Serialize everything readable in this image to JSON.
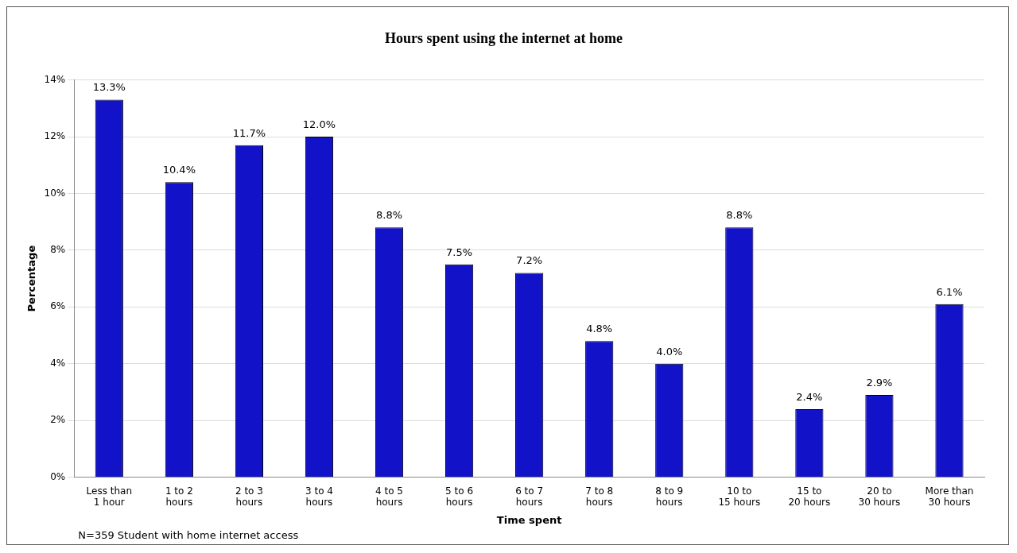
{
  "chart_data": {
    "type": "bar",
    "title": "Hours spent using the internet at home",
    "xlabel": "Time spent",
    "ylabel": "Percentage",
    "categories": [
      "Less than 1 hour",
      "1 to 2 hours",
      "2 to 3 hours",
      "3 to 4 hours",
      "4 to 5 hours",
      "5 to 6 hours",
      "6 to 7 hours",
      "7 to 8 hours",
      "8 to 9 hours",
      "10 to 15 hours",
      "15 to 20 hours",
      "20 to 30 hours",
      "More than 30 hours"
    ],
    "values": [
      13.3,
      10.4,
      11.7,
      12.0,
      8.8,
      7.5,
      7.2,
      4.8,
      4.0,
      8.8,
      2.4,
      2.9,
      6.1
    ],
    "value_labels": [
      "13.3%",
      "10.4%",
      "11.7%",
      "12.0%",
      "8.8%",
      "7.5%",
      "7.2%",
      "4.8%",
      "4.0%",
      "8.8%",
      "2.4%",
      "2.9%",
      "6.1%"
    ],
    "color": "#1212c8",
    "ylim": [
      0,
      14
    ],
    "yticks": [
      {
        "value": 0,
        "label": "0%"
      },
      {
        "value": 2,
        "label": "2%"
      },
      {
        "value": 4,
        "label": "4%"
      },
      {
        "value": 6,
        "label": "6%"
      },
      {
        "value": 8,
        "label": "8%"
      },
      {
        "value": 10,
        "label": "10%"
      },
      {
        "value": 12,
        "label": "12%"
      },
      {
        "value": 14,
        "label": "14%"
      }
    ],
    "grid": "y",
    "legend": false,
    "annotations": [
      "N=359 Student with home internet access"
    ]
  }
}
